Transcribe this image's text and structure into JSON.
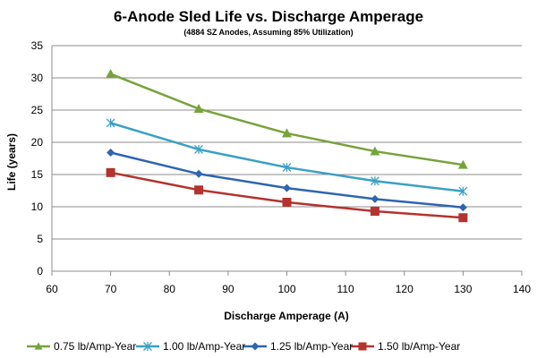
{
  "chart_data": {
    "type": "line",
    "title": "6-Anode Sled Life vs. Discharge Amperage",
    "subtitle": "(4884 SZ Anodes, Assuming 85% Utilization)",
    "xlabel": "Discharge Amperage (A)",
    "ylabel": "Life (years)",
    "xlim": [
      60,
      140
    ],
    "ylim": [
      0,
      35
    ],
    "xticks": [
      60,
      70,
      80,
      90,
      100,
      110,
      120,
      130,
      140
    ],
    "yticks": [
      0,
      5,
      10,
      15,
      20,
      25,
      30,
      35
    ],
    "grid": "horizontal",
    "legend_position": "bottom",
    "x": [
      70,
      85,
      100,
      115,
      130
    ],
    "series": [
      {
        "name": "0.75 lb/Amp-Year",
        "values": [
          30.6,
          25.2,
          21.4,
          18.6,
          16.5
        ],
        "color": "#77a33b",
        "marker": "triangle"
      },
      {
        "name": "1.00 lb/Amp-Year",
        "values": [
          23.0,
          18.9,
          16.1,
          14.0,
          12.4
        ],
        "color": "#3aa0c4",
        "marker": "asterisk"
      },
      {
        "name": "1.25 lb/Amp-Year",
        "values": [
          18.4,
          15.1,
          12.9,
          11.2,
          9.9
        ],
        "color": "#2f64b0",
        "marker": "diamond"
      },
      {
        "name": "1.50 lb/Amp-Year",
        "values": [
          15.3,
          12.6,
          10.7,
          9.3,
          8.3
        ],
        "color": "#b3332e",
        "marker": "square"
      }
    ]
  }
}
